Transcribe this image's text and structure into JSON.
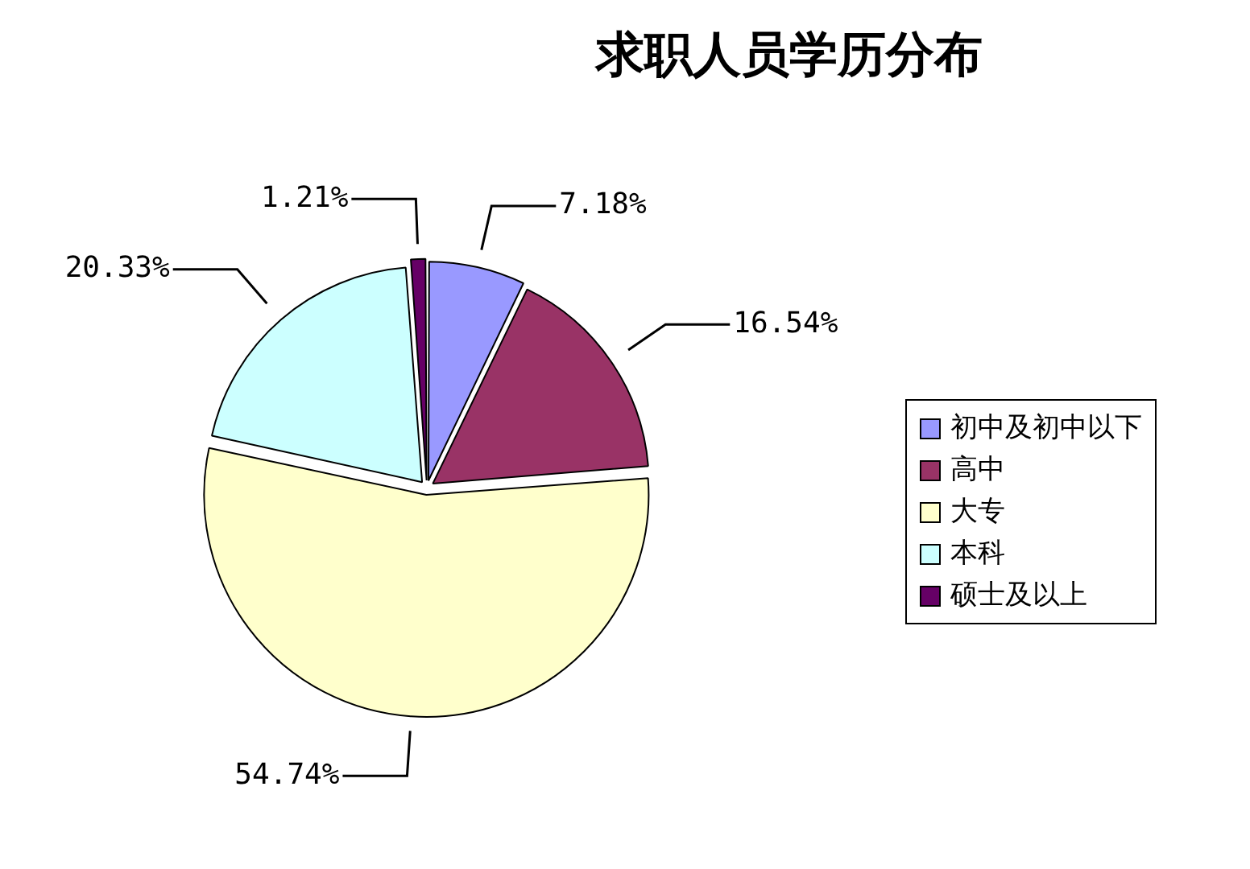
{
  "chart_data": {
    "type": "pie",
    "title": "求职人员学历分布",
    "categories": [
      "初中及初中以下",
      "高中",
      "大专",
      "本科",
      "硕士及以上"
    ],
    "values": [
      7.18,
      16.54,
      54.74,
      20.33,
      1.21
    ],
    "colors": [
      "#9999ff",
      "#993366",
      "#ffffcc",
      "#ccffff",
      "#660066"
    ],
    "value_labels": [
      "7.18%",
      "16.54%",
      "54.74%",
      "20.33%",
      "1.21%"
    ],
    "legend": "right"
  }
}
